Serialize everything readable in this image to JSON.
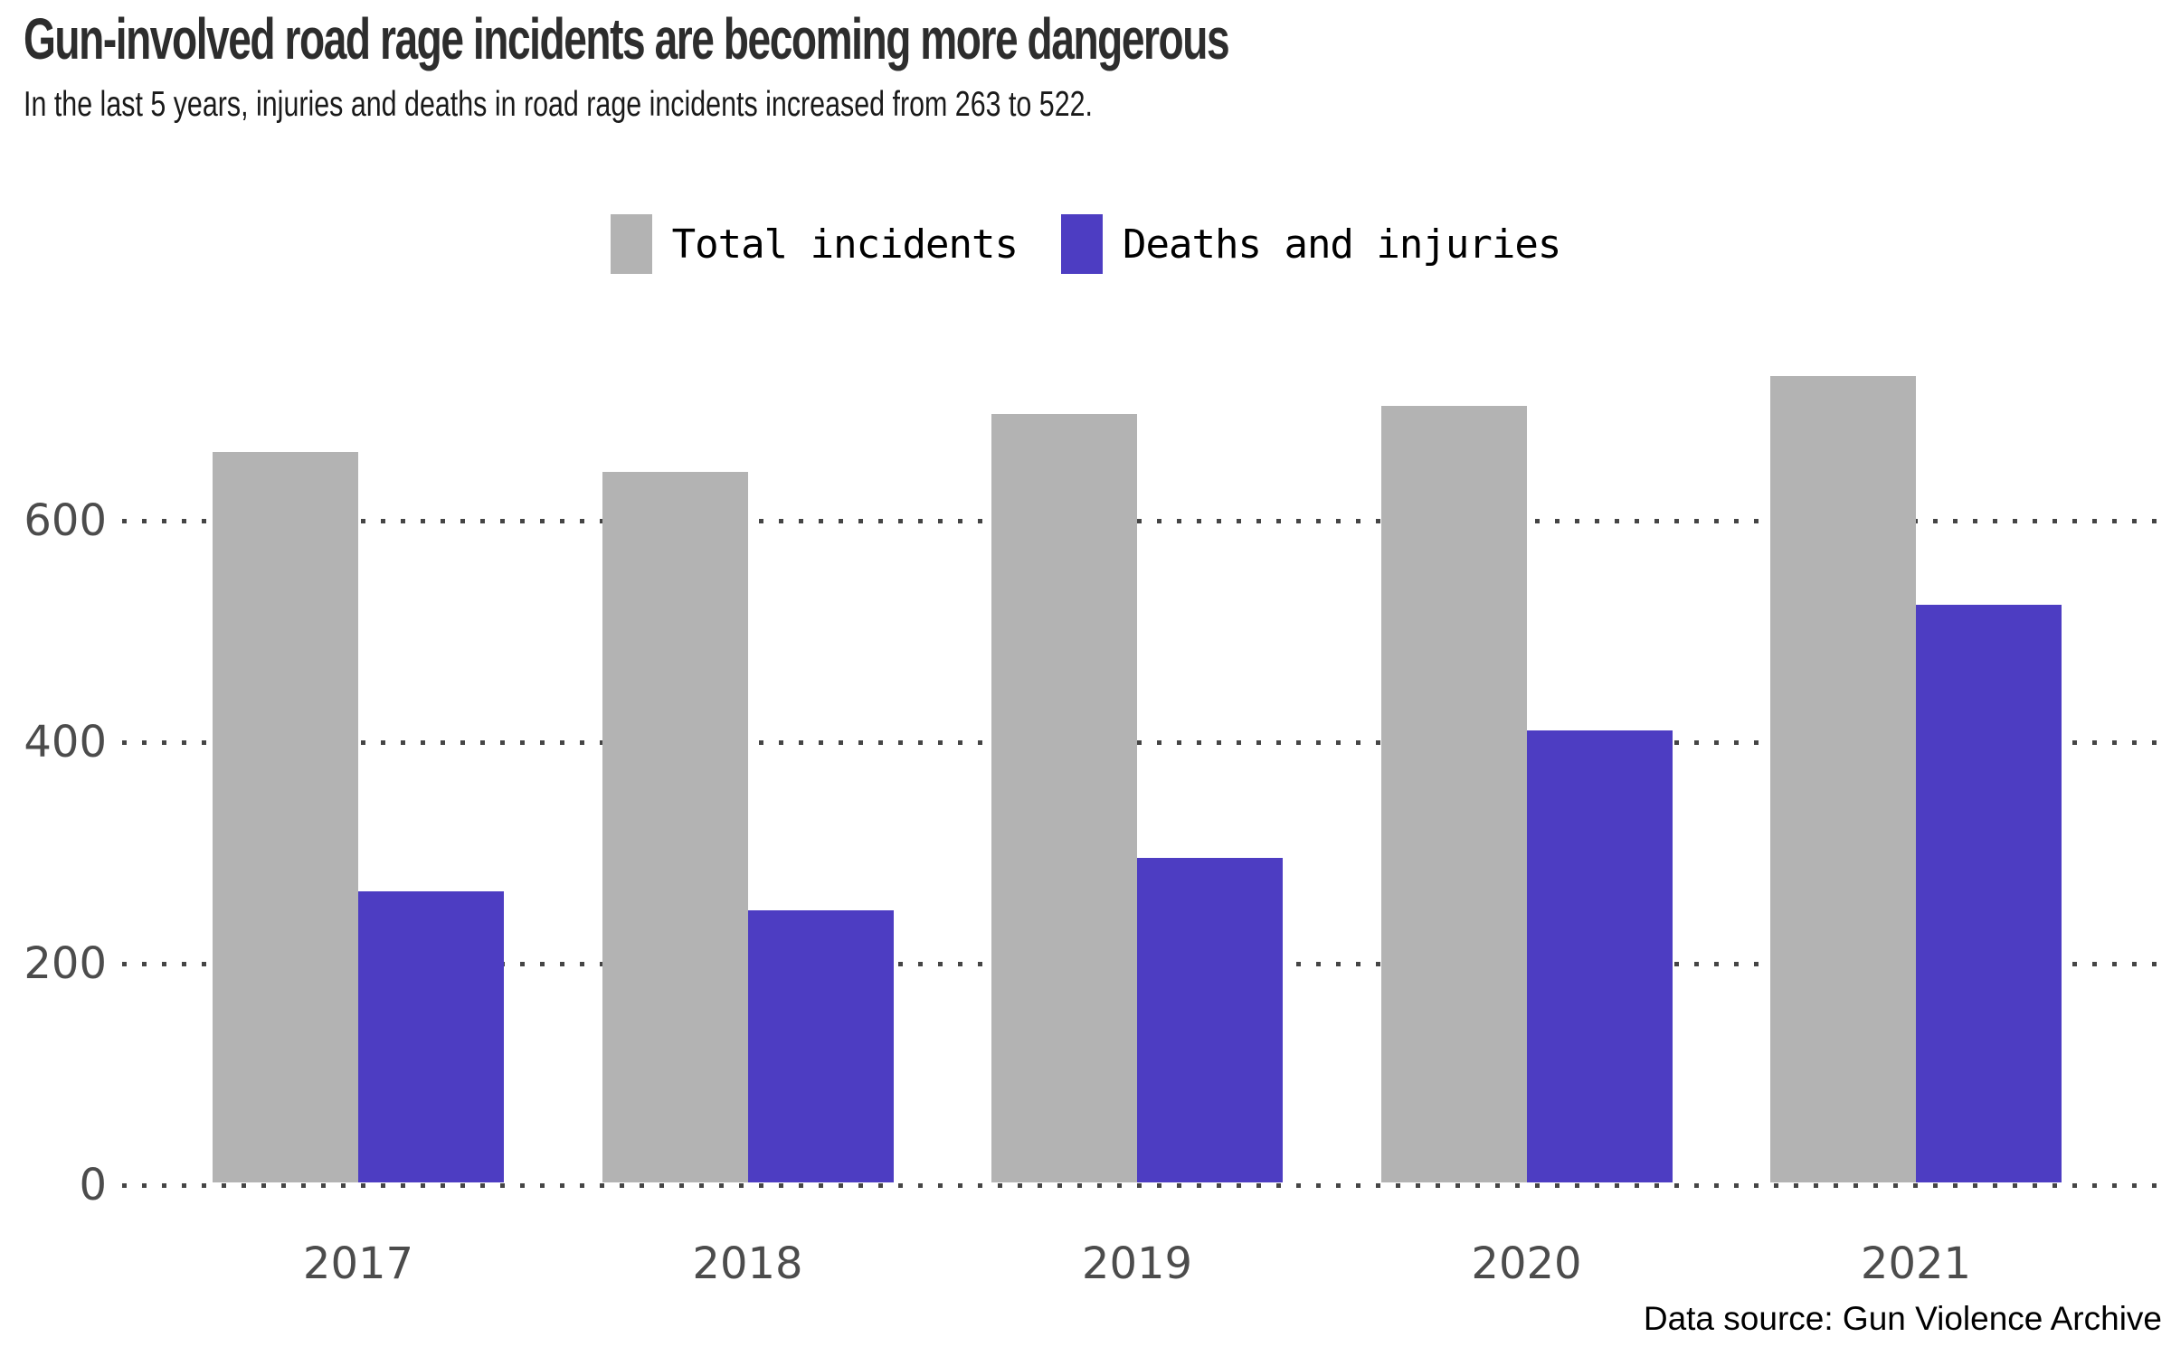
{
  "header": {
    "title": "Gun-involved road rage incidents are becoming more dangerous",
    "subtitle": "In the last 5 years, injuries and deaths in road rage incidents increased from 263 to 522."
  },
  "legend": [
    {
      "label": "Total incidents",
      "color": "#b3b3b3"
    },
    {
      "label": "Deaths and injuries",
      "color": "#4d3dc2"
    }
  ],
  "footer": {
    "source": "Data source: Gun Violence Archive"
  },
  "colors": {
    "total_incidents": "#b3b3b3",
    "deaths_injuries": "#4d3dc2",
    "grid_dots": "#454545",
    "axis_text": "#4c4c4c",
    "title_text": "#2d2d2d"
  },
  "chart_data": {
    "type": "bar",
    "title": "Gun-involved road rage incidents are becoming more dangerous",
    "subtitle": "In the last 5 years, injuries and deaths in road rage incidents increased from 263 to 522.",
    "categories": [
      "2017",
      "2018",
      "2019",
      "2020",
      "2021"
    ],
    "series": [
      {
        "name": "Total incidents",
        "color": "#b3b3b3",
        "values": [
          660,
          642,
          694,
          701,
          728
        ]
      },
      {
        "name": "Deaths and injuries",
        "color": "#4d3dc2",
        "values": [
          263,
          246,
          293,
          408,
          522
        ]
      }
    ],
    "xlabel": "",
    "ylabel": "",
    "yticks": [
      0,
      200,
      400,
      600
    ],
    "ylim": [
      0,
      740
    ],
    "grid": "horizontal-dotted",
    "legend_position": "top-center",
    "source": "Data source: Gun Violence Archive"
  }
}
